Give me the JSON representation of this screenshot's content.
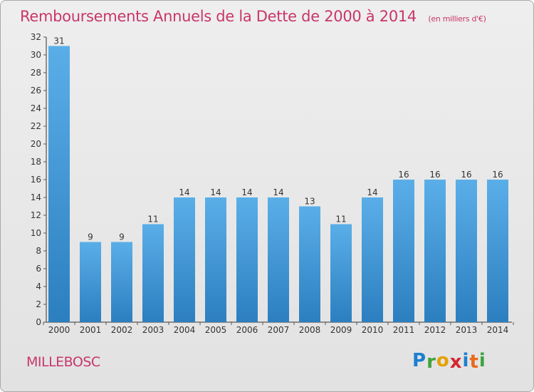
{
  "header": {
    "title": "Remboursements Annuels de la Dette de 2000 à 2014",
    "unit": "(en milliers d'€)"
  },
  "footer": {
    "commune": "MILLEBOSC",
    "brand": {
      "letters": [
        "P",
        "r",
        "o",
        "x",
        "i",
        "t",
        "i"
      ],
      "colors": [
        "#1e7fcf",
        "#3fa33f",
        "#e5a100",
        "#d6262f",
        "#1e7fcf",
        "#e86a1a",
        "#3fa33f"
      ]
    }
  },
  "colors": {
    "title": "#c8366b",
    "bar_light": "#5aaee8",
    "bar_dark": "#2c7fbf",
    "axis": "#333333",
    "grid_tick": "#555555"
  },
  "chart_data": {
    "type": "bar",
    "title": "Remboursements Annuels de la Dette de 2000 à 2014",
    "xlabel": "",
    "ylabel": "",
    "categories": [
      "2000",
      "2001",
      "2002",
      "2003",
      "2004",
      "2005",
      "2006",
      "2007",
      "2008",
      "2009",
      "2010",
      "2011",
      "2012",
      "2013",
      "2014"
    ],
    "values": [
      31,
      9,
      9,
      11,
      14,
      14,
      14,
      14,
      13,
      11,
      14,
      16,
      16,
      16,
      16
    ],
    "ylim": [
      0,
      32
    ],
    "yticks": [
      0,
      2,
      4,
      6,
      8,
      10,
      12,
      14,
      16,
      18,
      20,
      22,
      24,
      26,
      28,
      30,
      32
    ],
    "grid": false,
    "data_labels": true
  }
}
